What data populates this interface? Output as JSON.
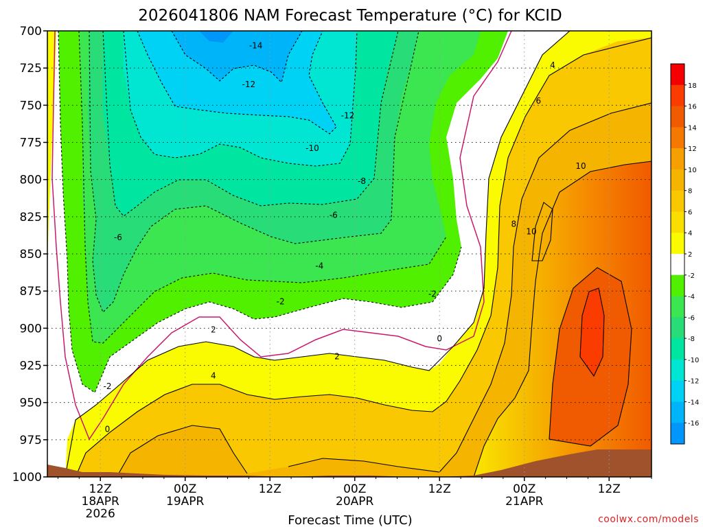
{
  "chart_data": {
    "type": "heatmap",
    "title": "2026041806 NAM Forecast Temperature (°C) for KCID",
    "xlabel": "Forecast Time (UTC)",
    "ylabel": "",
    "credit": "coolwx.com/models",
    "ylim": [
      1000,
      700
    ],
    "xlim_hours": [
      -1.5,
      84
    ],
    "y_ticks": [
      "700",
      "725",
      "750",
      "775",
      "800",
      "825",
      "850",
      "875",
      "900",
      "925",
      "950",
      "975",
      "1000"
    ],
    "x_ticks": [
      {
        "hour": 6,
        "line1": "12Z",
        "line2": "18APR",
        "line3": "2026"
      },
      {
        "hour": 18,
        "line1": "00Z",
        "line2": "19APR",
        "line3": ""
      },
      {
        "hour": 30,
        "line1": "12Z",
        "line2": "",
        "line3": ""
      },
      {
        "hour": 42,
        "line1": "00Z",
        "line2": "20APR",
        "line3": ""
      },
      {
        "hour": 54,
        "line1": "12Z",
        "line2": "",
        "line3": ""
      },
      {
        "hour": 66,
        "line1": "00Z",
        "line2": "21APR",
        "line3": ""
      },
      {
        "hour": 78,
        "line1": "12Z",
        "line2": "",
        "line3": ""
      }
    ],
    "colorbar": {
      "labels": [
        "18",
        "16",
        "14",
        "12",
        "10",
        "8",
        "6",
        "4",
        "2",
        "-2",
        "-4",
        "-6",
        "-8",
        "-10",
        "-12",
        "-14",
        "-16"
      ],
      "colors": [
        "#f50000",
        "#fa3c00",
        "#f05a00",
        "#f57800",
        "#f5a000",
        "#f5b400",
        "#fac800",
        "#fade00",
        "#fafa00",
        "#ffffff",
        "#50f000",
        "#3ce650",
        "#28dc78",
        "#00e6a0",
        "#00e6d2",
        "#00d2f5",
        "#00b4fa",
        "#0096fa"
      ]
    },
    "contour_labels": [
      {
        "text": "-14",
        "hour": 28,
        "p": 710
      },
      {
        "text": "-12",
        "hour": 27,
        "p": 736
      },
      {
        "text": "-12",
        "hour": 41,
        "p": 757
      },
      {
        "text": "-10",
        "hour": 36,
        "p": 779
      },
      {
        "text": "-8",
        "hour": 43,
        "p": 801
      },
      {
        "text": "-6",
        "hour": 39,
        "p": 824
      },
      {
        "text": "-6",
        "hour": 8.5,
        "p": 839
      },
      {
        "text": "-4",
        "hour": 37,
        "p": 858
      },
      {
        "text": "-2",
        "hour": 31.5,
        "p": 882
      },
      {
        "text": "-2",
        "hour": 53,
        "p": 877
      },
      {
        "text": "-2",
        "hour": 7,
        "p": 939
      },
      {
        "text": "0",
        "hour": 54,
        "p": 907
      },
      {
        "text": "0",
        "hour": 7,
        "p": 968
      },
      {
        "text": "2",
        "hour": 22,
        "p": 901
      },
      {
        "text": "2",
        "hour": 39.5,
        "p": 919
      },
      {
        "text": "4",
        "hour": 22,
        "p": 932
      },
      {
        "text": "4",
        "hour": 70,
        "p": 723
      },
      {
        "text": "6",
        "hour": 68,
        "p": 747
      },
      {
        "text": "8",
        "hour": 64.5,
        "p": 830
      },
      {
        "text": "10",
        "hour": 67,
        "p": 835
      },
      {
        "text": "10",
        "hour": 74,
        "p": 791
      }
    ]
  }
}
